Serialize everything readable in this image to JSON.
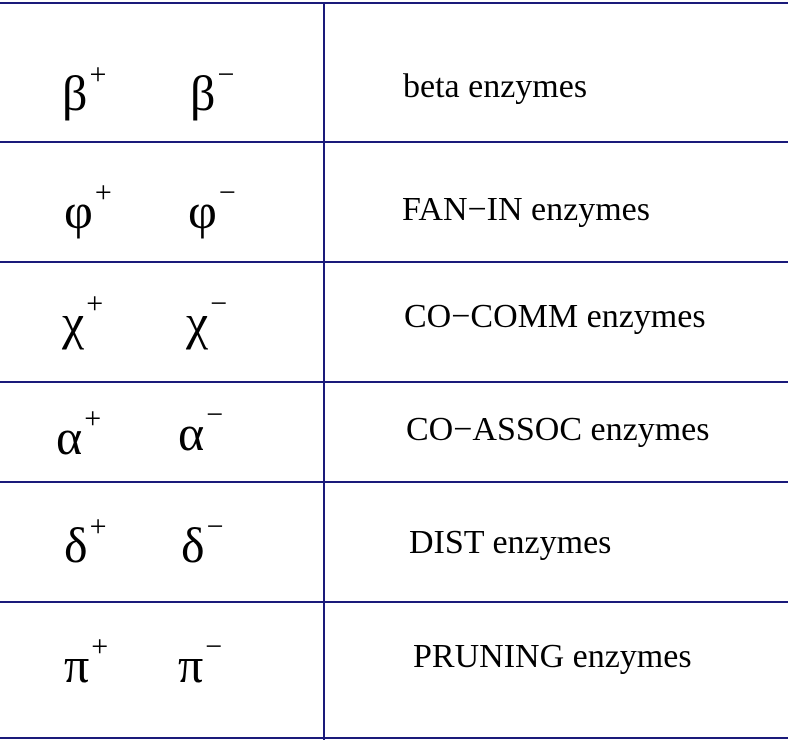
{
  "rows": [
    {
      "plus_symbol": "β",
      "plus_sign": "+",
      "minus_symbol": "β",
      "minus_sign": "−",
      "label": "beta enzymes"
    },
    {
      "plus_symbol": "φ",
      "plus_sign": "+",
      "minus_symbol": "φ",
      "minus_sign": "−",
      "label": "FAN−IN enzymes"
    },
    {
      "plus_symbol": "χ",
      "plus_sign": "+",
      "minus_symbol": "χ",
      "minus_sign": "−",
      "label": "CO−COMM enzymes"
    },
    {
      "plus_symbol": "α",
      "plus_sign": "+",
      "minus_symbol": "α",
      "minus_sign": "−",
      "label": "CO−ASSOC enzymes"
    },
    {
      "plus_symbol": "δ",
      "plus_sign": "+",
      "minus_symbol": "δ",
      "minus_sign": "−",
      "label": "DIST enzymes"
    },
    {
      "plus_symbol": "π",
      "plus_sign": "+",
      "minus_symbol": "π",
      "minus_sign": "−",
      "label": "PRUNING enzymes"
    }
  ],
  "colors": {
    "rule": "#1a1a7a",
    "text": "#000000",
    "background": "#ffffff"
  }
}
